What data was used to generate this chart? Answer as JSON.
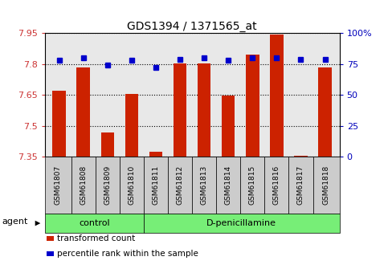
{
  "title": "GDS1394 / 1371565_at",
  "samples": [
    "GSM61807",
    "GSM61808",
    "GSM61809",
    "GSM61810",
    "GSM61811",
    "GSM61812",
    "GSM61813",
    "GSM61814",
    "GSM61815",
    "GSM61816",
    "GSM61817",
    "GSM61818"
  ],
  "red_values": [
    7.67,
    7.785,
    7.465,
    7.655,
    7.375,
    7.805,
    7.805,
    7.645,
    7.845,
    7.945,
    7.355,
    7.785
  ],
  "blue_values": [
    78,
    80,
    74,
    78,
    72,
    79,
    80,
    78,
    80,
    80,
    79,
    79
  ],
  "ylim_left": [
    7.35,
    7.95
  ],
  "ylim_right": [
    0,
    100
  ],
  "yticks_left": [
    7.35,
    7.5,
    7.65,
    7.8,
    7.95
  ],
  "yticks_right": [
    0,
    25,
    50,
    75,
    100
  ],
  "ytick_labels_right": [
    "0",
    "25",
    "50",
    "75",
    "100%"
  ],
  "bar_color": "#cc2200",
  "dot_color": "#0000cc",
  "control_count": 4,
  "group_labels": [
    "control",
    "D-penicillamine"
  ],
  "group_bg_color": "#77ee77",
  "sample_box_color": "#cccccc",
  "agent_label": "agent",
  "legend_red": "transformed count",
  "legend_blue": "percentile rank within the sample",
  "bar_width": 0.55,
  "bg_color": "#ffffff",
  "left_tick_color": "#cc3333",
  "right_tick_color": "#0000bb",
  "plot_bg_color": "#e8e8e8",
  "title_fontsize": 10,
  "tick_fontsize": 8,
  "sample_fontsize": 6.5,
  "group_fontsize": 8,
  "legend_fontsize": 7.5
}
